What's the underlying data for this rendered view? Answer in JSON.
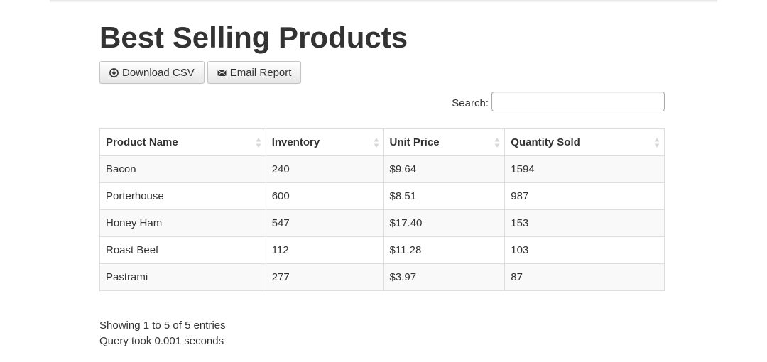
{
  "page": {
    "title": "Best Selling Products"
  },
  "toolbar": {
    "download_label": "Download CSV",
    "download_icon": "download-circle-icon",
    "email_label": "Email Report",
    "email_icon": "envelope-icon"
  },
  "search": {
    "label": "Search:",
    "value": "",
    "placeholder": ""
  },
  "table": {
    "columns": [
      "Product Name",
      "Inventory",
      "Unit Price",
      "Quantity Sold"
    ],
    "rows": [
      [
        "Bacon",
        "240",
        "$9.64",
        "1594"
      ],
      [
        "Porterhouse",
        "600",
        "$8.51",
        "987"
      ],
      [
        "Honey Ham",
        "547",
        "$17.40",
        "153"
      ],
      [
        "Roast Beef",
        "112",
        "$11.28",
        "103"
      ],
      [
        "Pastrami",
        "277",
        "$3.97",
        "87"
      ]
    ]
  },
  "footer": {
    "entries_info": "Showing 1 to 5 of 5 entries",
    "query_time": "Query took 0.001 seconds"
  },
  "colors": {
    "text": "#333333",
    "border": "#dddddd",
    "stripe": "#f9f9f9"
  }
}
